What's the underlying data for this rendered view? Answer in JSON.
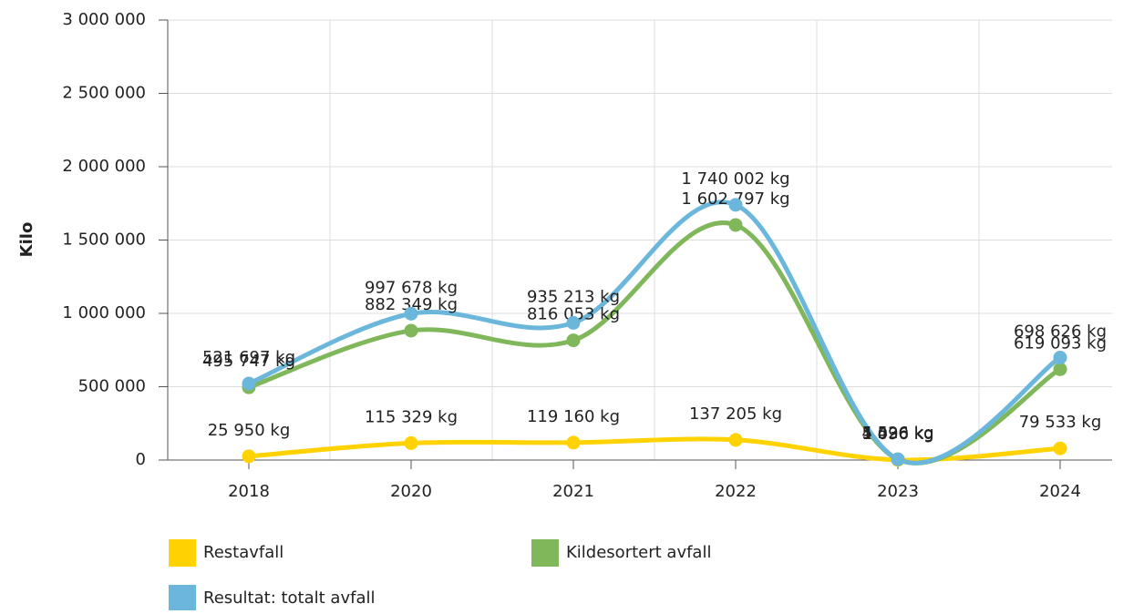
{
  "chart_data": {
    "type": "line",
    "y_label": "Kilo",
    "categories": [
      "2018",
      "2020",
      "2021",
      "2022",
      "2023",
      "2024"
    ],
    "series": [
      {
        "name": "Restavfall",
        "color": "#ffd200",
        "values": [
          25950,
          115329,
          119160,
          137205,
          1096,
          79533
        ],
        "value_labels": [
          "25 950 kg",
          "115 329 kg",
          "119 160 kg",
          "137 205 kg",
          "1 096 kg",
          "79 533 kg"
        ]
      },
      {
        "name": "Kildesortert avfall",
        "color": "#80b75a",
        "values": [
          495747,
          882349,
          816053,
          1602797,
          4430,
          619093
        ],
        "value_labels": [
          "495 747 kg",
          "882 349 kg",
          "816 053 kg",
          "1 602 797 kg",
          "4 430 kg",
          "619 093 kg"
        ]
      },
      {
        "name": "Resultat: totalt avfall",
        "color": "#6bb7dc",
        "values": [
          521697,
          997678,
          935213,
          1740002,
          5526,
          698626
        ],
        "value_labels": [
          "521 697 kg",
          "997 678 kg",
          "935 213 kg",
          "1 740 002 kg",
          "5 526 kg",
          "698 626 kg"
        ]
      }
    ],
    "ylim": [
      0,
      3000000
    ],
    "yticks": [
      0,
      {
        "value": 500000,
        "label": "500 000"
      },
      {
        "value": 1000000,
        "label": "1 000 000"
      },
      {
        "value": 1500000,
        "label": "1 500 000"
      },
      {
        "value": 2000000,
        "label": "2 000 000"
      },
      {
        "value": 2500000,
        "label": "2 500 000"
      },
      {
        "value": 3000000,
        "label": "3 000 000"
      }
    ],
    "grid": true
  }
}
